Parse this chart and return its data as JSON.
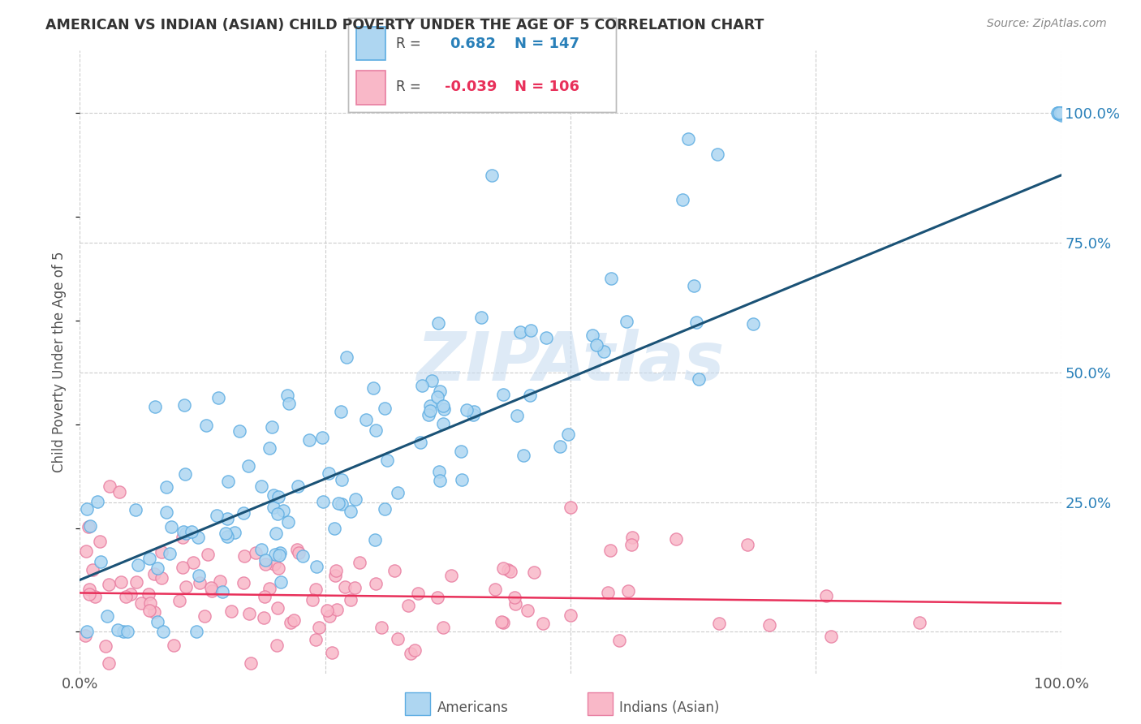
{
  "title": "AMERICAN VS INDIAN (ASIAN) CHILD POVERTY UNDER THE AGE OF 5 CORRELATION CHART",
  "source": "Source: ZipAtlas.com",
  "ylabel": "Child Poverty Under the Age of 5",
  "xlim": [
    0,
    1.0
  ],
  "ylim": [
    -0.08,
    1.12
  ],
  "x_ticks": [
    0.0,
    0.25,
    0.5,
    0.75,
    1.0
  ],
  "x_tick_labels": [
    "0.0%",
    "",
    "",
    "",
    "100.0%"
  ],
  "y_ticks_right": [
    0.25,
    0.5,
    0.75,
    1.0
  ],
  "y_tick_labels_right": [
    "25.0%",
    "50.0%",
    "75.0%",
    "100.0%"
  ],
  "americans_R": 0.682,
  "americans_N": 147,
  "indians_R": -0.039,
  "indians_N": 106,
  "blue_dot_face": "#AED6F1",
  "blue_dot_edge": "#5DADE2",
  "pink_dot_face": "#F9B8C8",
  "pink_dot_edge": "#E87EA1",
  "line_blue": "#1A5276",
  "line_pink": "#E8305A",
  "legend_blue_face": "#AED6F1",
  "legend_blue_edge": "#5DADE2",
  "legend_pink_face": "#F9B8C8",
  "legend_pink_edge": "#E87EA1",
  "blue_text_color": "#2980B9",
  "pink_text_color": "#E8305A",
  "watermark_color": "#C8DCF0",
  "grid_color": "#CCCCCC",
  "title_color": "#333333",
  "source_color": "#888888",
  "ylabel_color": "#555555",
  "tick_color": "#555555",
  "blue_line_slope": 0.78,
  "blue_line_intercept": 0.1,
  "pink_line_slope": -0.02,
  "pink_line_intercept": 0.075
}
